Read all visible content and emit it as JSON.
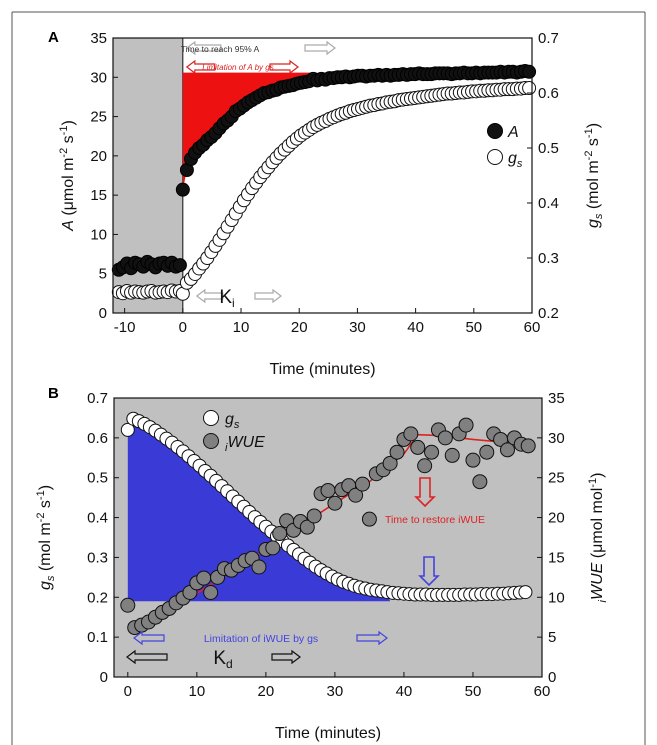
{
  "chart_data": [
    {
      "panel_label": "A",
      "type": "scatter",
      "xlabel": "Time (minutes)",
      "xlim": [
        -12,
        60
      ],
      "xticks": [
        -10,
        0,
        10,
        20,
        30,
        40,
        50,
        60
      ],
      "ylabel_left": {
        "var": "A",
        "rest": " (μmol m",
        "sup1": "-2",
        "mid": " s",
        "sup2": "-1",
        "end": ")"
      },
      "ylim_left": [
        0,
        35
      ],
      "yticks_left": [
        0,
        5,
        10,
        15,
        20,
        25,
        30,
        35
      ],
      "ylabel_right": {
        "var": "g",
        "sub": "s",
        "rest": " (mol m",
        "sup1": "-2",
        "mid": " s",
        "sup2": "-1",
        "end": ")"
      },
      "ylim_right": [
        0.2,
        0.7
      ],
      "yticks_right": [
        "0.2",
        "0.3",
        "0.4",
        "0.5",
        "0.6",
        "0.7"
      ],
      "shaded_region": {
        "from": -12,
        "to": 0,
        "color": "#c0c0c0"
      },
      "legend": [
        {
          "name": "A",
          "marker": "filled-black",
          "italic": true
        },
        {
          "name": "g",
          "sub": "s",
          "marker": "open-white",
          "italic": true
        }
      ],
      "annotations": {
        "time_to_95": "Time to reach 95% A",
        "limitation_a": "Limitation of A by gs",
        "ki": {
          "main": "K",
          "sub": "i"
        }
      },
      "colors": {
        "filled": "#111111",
        "open": "#ffffff",
        "limitation_fill": "#ee1111",
        "arrow_grey": "#aaaaaa",
        "arrow_red": "#dd2222"
      },
      "series": [
        {
          "name": "A",
          "axis": "left",
          "x": [
            -11,
            -10.3,
            -9.6,
            -8.9,
            -8.2,
            -7.5,
            -6.8,
            -6.1,
            -5.4,
            -4.7,
            -4,
            -3.3,
            -2.6,
            -1.9,
            -1.2,
            -0.5,
            0,
            0.7,
            1.4,
            2.1,
            2.8,
            3.5,
            4.2,
            4.9,
            5.6,
            6.3,
            7,
            7.7,
            8.4,
            9.1,
            9.8,
            10.5,
            11.2,
            11.9,
            12.6,
            13.3,
            14,
            14.7,
            15.4,
            16.1,
            16.8,
            17.5,
            18.2,
            18.9,
            19.6,
            20.3,
            21,
            21.7,
            22.4,
            23.1,
            23.8,
            24.5,
            25.2,
            25.9,
            26.6,
            27.3,
            28,
            28.7,
            29.4,
            30.1,
            30.8,
            31.5,
            32.2,
            32.9,
            33.6,
            34.3,
            35,
            35.7,
            36.4,
            37.1,
            37.8,
            38.5,
            39.2,
            39.9,
            40.6,
            41.3,
            42,
            42.7,
            43.4,
            44.1,
            44.8,
            45.5,
            46.2,
            46.9,
            47.6,
            48.3,
            49,
            49.7,
            50.4,
            51.1,
            51.8,
            52.5,
            53.2,
            53.9,
            54.6,
            55.3,
            56,
            56.7,
            57.4,
            58.1,
            58.8,
            59.5
          ],
          "values": [
            5.5,
            5.8,
            6.3,
            5.7,
            6.4,
            6.2,
            5.9,
            6.5,
            6.2,
            5.8,
            6.3,
            6.4,
            6.0,
            6.4,
            5.9,
            6.1,
            15.7,
            18.2,
            19.6,
            20.4,
            21.0,
            21.4,
            22.0,
            22.4,
            22.9,
            23.5,
            24.1,
            24.5,
            25.0,
            25.7,
            26.0,
            26.4,
            26.8,
            27.1,
            27.4,
            27.7,
            28.0,
            28.1,
            28.3,
            28.4,
            28.7,
            28.8,
            28.9,
            29.0,
            29.2,
            29.3,
            29.4,
            29.5,
            29.8,
            29.6,
            29.8,
            29.7,
            29.9,
            29.9,
            30.0,
            30.0,
            30.1,
            30.0,
            30.1,
            30.2,
            30.2,
            30.1,
            30.2,
            30.2,
            30.3,
            30.2,
            30.3,
            30.2,
            30.3,
            30.3,
            30.4,
            30.3,
            30.4,
            30.4,
            30.5,
            30.4,
            30.4,
            30.4,
            30.5,
            30.5,
            30.5,
            30.5,
            30.4,
            30.5,
            30.5,
            30.6,
            30.5,
            30.5,
            30.6,
            30.5,
            30.6,
            30.6,
            30.6,
            30.6,
            30.7,
            30.6,
            30.7,
            30.7,
            30.6,
            30.7,
            30.8,
            30.7
          ]
        },
        {
          "name": "gs",
          "axis": "right",
          "x": [
            -11,
            -10.3,
            -9.6,
            -8.9,
            -8.2,
            -7.5,
            -6.8,
            -6.1,
            -5.4,
            -4.7,
            -4,
            -3.3,
            -2.6,
            -1.9,
            -1.2,
            -0.5,
            0,
            0.7,
            1.4,
            2.1,
            2.8,
            3.5,
            4.2,
            4.9,
            5.6,
            6.3,
            7,
            7.7,
            8.4,
            9.1,
            9.8,
            10.5,
            11.2,
            11.9,
            12.6,
            13.3,
            14,
            14.7,
            15.4,
            16.1,
            16.8,
            17.5,
            18.2,
            18.9,
            19.6,
            20.3,
            21,
            21.7,
            22.4,
            23.1,
            23.8,
            24.5,
            25.2,
            25.9,
            26.6,
            27.3,
            28,
            28.7,
            29.4,
            30.1,
            30.8,
            31.5,
            32.2,
            32.9,
            33.6,
            34.3,
            35,
            35.7,
            36.4,
            37.1,
            37.8,
            38.5,
            39.2,
            39.9,
            40.6,
            41.3,
            42,
            42.7,
            43.4,
            44.1,
            44.8,
            45.5,
            46.2,
            46.9,
            47.6,
            48.3,
            49,
            49.7,
            50.4,
            51.1,
            51.8,
            52.5,
            53.2,
            53.9,
            54.6,
            55.3,
            56,
            56.7,
            57.4,
            58.1,
            58.8,
            59.5
          ],
          "values": [
            0.238,
            0.236,
            0.24,
            0.237,
            0.239,
            0.238,
            0.237,
            0.239,
            0.24,
            0.237,
            0.238,
            0.239,
            0.238,
            0.241,
            0.239,
            0.24,
            0.235,
            0.255,
            0.262,
            0.271,
            0.281,
            0.29,
            0.3,
            0.311,
            0.322,
            0.333,
            0.345,
            0.357,
            0.369,
            0.381,
            0.393,
            0.405,
            0.416,
            0.427,
            0.437,
            0.447,
            0.456,
            0.465,
            0.474,
            0.482,
            0.49,
            0.497,
            0.504,
            0.511,
            0.517,
            0.523,
            0.528,
            0.533,
            0.538,
            0.542,
            0.546,
            0.549,
            0.553,
            0.556,
            0.559,
            0.562,
            0.564,
            0.567,
            0.569,
            0.571,
            0.573,
            0.575,
            0.577,
            0.578,
            0.58,
            0.581,
            0.583,
            0.584,
            0.585,
            0.587,
            0.588,
            0.589,
            0.59,
            0.591,
            0.592,
            0.593,
            0.594,
            0.595,
            0.596,
            0.597,
            0.598,
            0.599,
            0.599,
            0.6,
            0.601,
            0.601,
            0.602,
            0.603,
            0.603,
            0.604,
            0.604,
            0.605,
            0.605,
            0.606,
            0.606,
            0.607,
            0.607,
            0.607,
            0.608,
            0.608,
            0.609,
            0.609
          ]
        }
      ]
    },
    {
      "panel_label": "B",
      "type": "scatter",
      "xlabel": "Time (minutes)",
      "xlim": [
        -2,
        60
      ],
      "xticks": [
        0,
        10,
        20,
        30,
        40,
        50,
        60
      ],
      "ylabel_left": {
        "var": "g",
        "sub": "s",
        "rest": " (mol m",
        "sup1": "-2",
        "mid": " s",
        "sup2": "-1",
        "end": ")"
      },
      "ylim_left": [
        0,
        0.7
      ],
      "yticks_left": [
        "0",
        "0.1",
        "0.2",
        "0.3",
        "0.4",
        "0.5",
        "0.6",
        "0.7"
      ],
      "ylabel_right": {
        "var": "WUE",
        "presub": "i",
        "rest": " (μmol mol",
        "sup1": "-1",
        "end": ")"
      },
      "ylim_right": [
        0,
        35
      ],
      "yticks_right": [
        0,
        5,
        10,
        15,
        20,
        25,
        30,
        35
      ],
      "background": "#c0c0c0",
      "legend": [
        {
          "name": "g",
          "sub": "s",
          "marker": "open-white"
        },
        {
          "name": "WUE",
          "presub": "i",
          "marker": "grey"
        }
      ],
      "annotations": {
        "time_to_restore": "Time to restore iWUE",
        "limitation_iwue": "Limitation of iWUE by gs",
        "kd": {
          "main": "K",
          "sub": "d"
        }
      },
      "colors": {
        "open": "#ffffff",
        "grey_marker": "#808080",
        "limitation_fill": "#3a3ad6",
        "fit_line": "#dd2222",
        "arrow_blue": "#4444dd",
        "arrow_red": "#dd2222",
        "arrow_black": "#111111"
      },
      "fit_line": {
        "axis": "right",
        "x": [
          1,
          5,
          10,
          15,
          20,
          25,
          30,
          35,
          40,
          42,
          45,
          50,
          55,
          58
        ],
        "y": [
          5.8,
          8,
          10.5,
          13.2,
          16,
          19,
          21.8,
          24.5,
          28,
          30.4,
          30.3,
          29.8,
          29.4,
          29.2
        ]
      },
      "series": [
        {
          "name": "gs",
          "axis": "left",
          "x": [
            0,
            0.8,
            1.6,
            2.4,
            3.2,
            4,
            4.8,
            5.6,
            6.4,
            7.2,
            8,
            8.8,
            9.6,
            10.4,
            11.2,
            12,
            12.8,
            13.6,
            14.4,
            15.2,
            16,
            16.8,
            17.6,
            18.4,
            19.2,
            20,
            20.8,
            21.6,
            22.4,
            23.2,
            24,
            24.8,
            25.6,
            26.4,
            27.2,
            28,
            28.8,
            29.6,
            30.4,
            31.2,
            32,
            32.8,
            33.6,
            34.4,
            35.2,
            36,
            36.8,
            37.6,
            38.4,
            39.2,
            40,
            40.8,
            41.6,
            42.4,
            43.2,
            44,
            44.8,
            45.6,
            46.4,
            47.2,
            48,
            48.8,
            49.6,
            50.4,
            51.2,
            52,
            52.8,
            53.6,
            54.4,
            55.2,
            56,
            56.8,
            57.6
          ],
          "values": [
            0.62,
            0.648,
            0.642,
            0.635,
            0.627,
            0.618,
            0.608,
            0.598,
            0.588,
            0.577,
            0.566,
            0.554,
            0.542,
            0.53,
            0.517,
            0.505,
            0.492,
            0.479,
            0.466,
            0.453,
            0.44,
            0.427,
            0.414,
            0.401,
            0.389,
            0.377,
            0.365,
            0.353,
            0.341,
            0.33,
            0.319,
            0.308,
            0.297,
            0.287,
            0.277,
            0.268,
            0.26,
            0.252,
            0.245,
            0.239,
            0.234,
            0.229,
            0.225,
            0.222,
            0.219,
            0.217,
            0.215,
            0.213,
            0.211,
            0.21,
            0.209,
            0.208,
            0.207,
            0.207,
            0.207,
            0.206,
            0.206,
            0.206,
            0.206,
            0.206,
            0.206,
            0.207,
            0.207,
            0.207,
            0.208,
            0.208,
            0.208,
            0.209,
            0.209,
            0.21,
            0.211,
            0.212,
            0.213
          ]
        },
        {
          "name": "iWUE",
          "axis": "right",
          "x": [
            0,
            1,
            2,
            3,
            4,
            5,
            6,
            7,
            8,
            9,
            10,
            11,
            12,
            13,
            14,
            15,
            16,
            17,
            18,
            19,
            20,
            21,
            22,
            23,
            24,
            25,
            26,
            27,
            28,
            29,
            30,
            31,
            32,
            33,
            34,
            35,
            36,
            37,
            38,
            39,
            40,
            41,
            42,
            43,
            44,
            45,
            46,
            47,
            48,
            49,
            50,
            51,
            52,
            53,
            54,
            55,
            56,
            57,
            58
          ],
          "values": [
            9.0,
            6.2,
            6.5,
            6.9,
            7.5,
            8.1,
            8.6,
            9.3,
            9.9,
            10.6,
            11.8,
            12.4,
            10.6,
            12.5,
            13.6,
            13.4,
            14.0,
            14.6,
            14.9,
            13.8,
            16.0,
            16.2,
            18.0,
            19.6,
            18.4,
            19.5,
            18.8,
            20.2,
            23.0,
            23.4,
            21.8,
            23.5,
            24.0,
            22.8,
            24.2,
            19.8,
            25.5,
            26.0,
            26.8,
            28.2,
            29.8,
            30.5,
            28.8,
            26.5,
            28.2,
            31.0,
            30.0,
            27.8,
            30.5,
            31.6,
            27.2,
            24.5,
            28.2,
            30.5,
            29.8,
            28.5,
            30.0,
            29.2,
            29.0
          ]
        }
      ]
    }
  ]
}
